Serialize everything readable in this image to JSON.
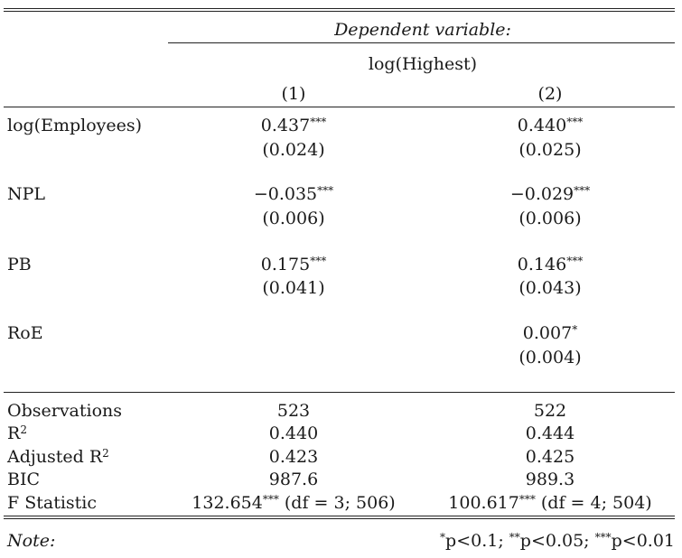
{
  "header": {
    "dependent_variable_label": "Dependent variable:",
    "dependent_variable": "log(Highest)",
    "columns": [
      "(1)",
      "(2)"
    ]
  },
  "rows": [
    {
      "label": "log(Employees)",
      "coef": [
        "0.437",
        "0.440"
      ],
      "stars": [
        "***",
        "***"
      ],
      "se": [
        "(0.024)",
        "(0.025)"
      ]
    },
    {
      "label": "NPL",
      "coef": [
        "−0.035",
        "−0.029"
      ],
      "stars": [
        "***",
        "***"
      ],
      "se": [
        "(0.006)",
        "(0.006)"
      ]
    },
    {
      "label": "PB",
      "coef": [
        "0.175",
        "0.146"
      ],
      "stars": [
        "***",
        "***"
      ],
      "se": [
        "(0.041)",
        "(0.043)"
      ]
    },
    {
      "label": "RoE",
      "coef": [
        "",
        "0.007"
      ],
      "stars": [
        "",
        "*"
      ],
      "se": [
        "",
        "(0.004)"
      ]
    }
  ],
  "stats": {
    "observations": {
      "label": "Observations",
      "values": [
        "523",
        "522"
      ]
    },
    "r2": {
      "label": "R",
      "sup": "2",
      "values": [
        "0.440",
        "0.444"
      ]
    },
    "adj_r2": {
      "label": "Adjusted R",
      "sup": "2",
      "values": [
        "0.423",
        "0.425"
      ]
    },
    "bic": {
      "label": "BIC",
      "values": [
        "987.6",
        "989.3"
      ]
    },
    "fstat": {
      "label": "F Statistic",
      "values": [
        "132.654",
        "100.617"
      ],
      "stars": [
        "***",
        "***"
      ],
      "df": [
        "(df = 3; 506)",
        "(df = 4; 504)"
      ]
    }
  },
  "note": {
    "label": "Note:",
    "s1": "*",
    "t1": "p<0.1; ",
    "s2": "**",
    "t2": "p<0.05; ",
    "s3": "***",
    "t3": "p<0.01"
  }
}
